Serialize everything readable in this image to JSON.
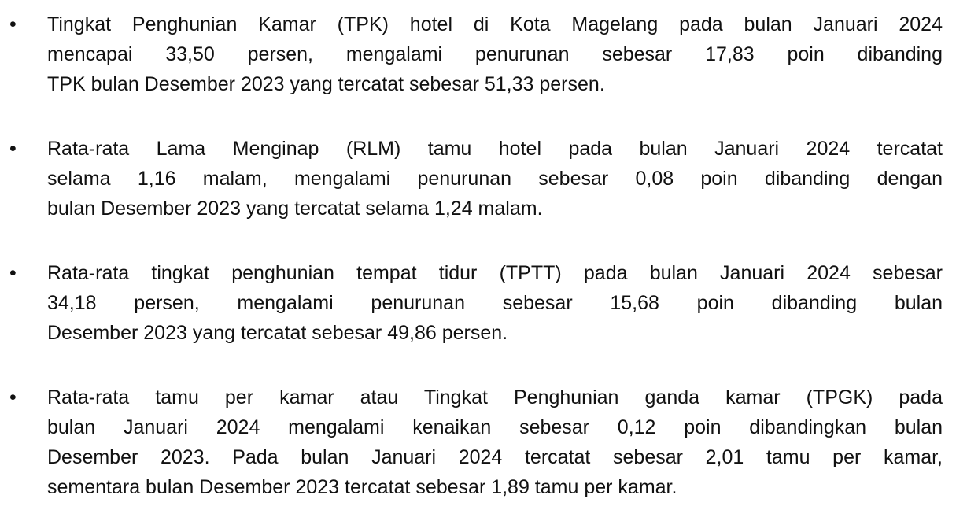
{
  "paragraphs": [
    {
      "lines": [
        "Tingkat Penghunian Kamar (TPK) hotel di Kota Magelang pada bulan Januari 2024",
        "mencapai 33,50 persen, mengalami penurunan sebesar 17,83 poin dibanding",
        "TPK bulan Desember 2023 yang tercatat sebesar 51,33 persen."
      ]
    },
    {
      "lines": [
        "Rata-rata Lama Menginap (RLM) tamu hotel pada bulan Januari 2024 tercatat",
        "selama 1,16 malam, mengalami penurunan sebesar 0,08 poin dibanding dengan",
        "bulan Desember 2023 yang tercatat selama 1,24 malam."
      ]
    },
    {
      "lines": [
        "Rata-rata tingkat penghunian tempat tidur (TPTT) pada bulan Januari 2024 sebesar",
        "34,18 persen, mengalami penurunan sebesar 15,68 poin dibanding bulan",
        "Desember 2023 yang tercatat sebesar 49,86 persen."
      ]
    },
    {
      "lines": [
        "Rata-rata tamu per kamar atau Tingkat Penghunian ganda kamar (TPGK) pada",
        "bulan Januari 2024 mengalami kenaikan sebesar 0,12 poin dibandingkan bulan",
        "Desember 2023. Pada bulan Januari 2024 tercatat sebesar 2,01 tamu per kamar,",
        "sementara bulan Desember 2023 tercatat sebesar 1,89 tamu per kamar."
      ]
    }
  ]
}
